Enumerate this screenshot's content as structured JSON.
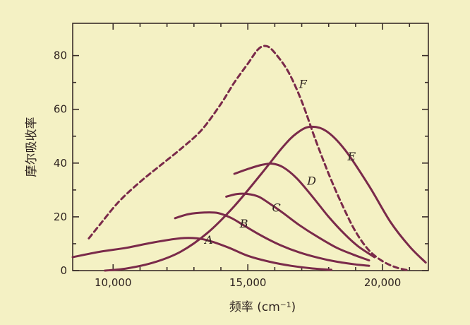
{
  "chart_data": {
    "type": "line",
    "title": "",
    "xlabel": "频率 (cm⁻¹)",
    "ylabel": "摩尔吸收率",
    "xlim": [
      8500,
      21700
    ],
    "ylim": [
      0,
      92
    ],
    "x_ticks": [
      10000,
      15000,
      20000
    ],
    "x_tick_labels": [
      "10,000",
      "15,000",
      "20,000"
    ],
    "x_minor_ticks": [
      11000,
      12000,
      13000,
      14000,
      16000,
      17000,
      18000,
      19000,
      21000
    ],
    "y_ticks": [
      0,
      20,
      40,
      60,
      80
    ],
    "y_tick_labels": [
      "0",
      "20",
      "40",
      "60",
      "80"
    ],
    "y_minor_ticks": [
      10,
      30,
      50,
      70
    ],
    "grid": false,
    "legend": "none",
    "colors": {
      "line": "#7a2a4a",
      "axis": "#3a2e2a",
      "background": "#f4f1c4"
    },
    "series": [
      {
        "name": "A",
        "style": "solid",
        "label_at": [
          13400,
          10
        ],
        "x": [
          8500,
          9500,
          10500,
          11500,
          12500,
          13100,
          13600,
          14300,
          15000,
          15800,
          16600,
          17400,
          18100
        ],
        "y": [
          5,
          7,
          8.5,
          10.5,
          12,
          12,
          11,
          8.5,
          5.5,
          3.3,
          1.8,
          0.8,
          0.3
        ]
      },
      {
        "name": "B",
        "style": "solid",
        "label_at": [
          14700,
          16
        ],
        "x": [
          12300,
          12800,
          13400,
          13900,
          14400,
          14900,
          15500,
          16200,
          16900,
          17600,
          18300,
          19000,
          19500
        ],
        "y": [
          19.5,
          21,
          21.6,
          21.4,
          19.5,
          16.5,
          13,
          9.5,
          6.8,
          4.8,
          3.3,
          2.3,
          1.8
        ]
      },
      {
        "name": "C",
        "style": "solid",
        "label_at": [
          15900,
          22
        ],
        "x": [
          14200,
          14600,
          15000,
          15400,
          15800,
          16300,
          16900,
          17600,
          18300,
          18900,
          19500
        ],
        "y": [
          27.5,
          28.5,
          28.5,
          27.5,
          25,
          21.5,
          17,
          12.5,
          8.5,
          6,
          3.8
        ]
      },
      {
        "name": "D",
        "style": "solid",
        "label_at": [
          17200,
          32
        ],
        "x": [
          14500,
          15000,
          15500,
          15900,
          16300,
          16800,
          17400,
          18000,
          18600,
          19100,
          19700
        ],
        "y": [
          36,
          37.8,
          39.3,
          39.8,
          38.5,
          34.5,
          27.5,
          20,
          13.5,
          9,
          5
        ]
      },
      {
        "name": "E",
        "style": "solid",
        "label_at": [
          18700,
          41
        ],
        "x": [
          9700,
          10500,
          11500,
          12500,
          13500,
          14500,
          15500,
          16300,
          16800,
          17300,
          17900,
          18600,
          19500,
          20300,
          21000,
          21600
        ],
        "y": [
          0,
          0.8,
          3,
          7,
          14,
          24,
          36,
          46,
          51,
          53.5,
          52,
          45,
          31.5,
          18,
          9,
          3
        ]
      },
      {
        "name": "F",
        "style": "dashed",
        "label_at": [
          16900,
          68
        ],
        "x": [
          9100,
          9500,
          10200,
          11000,
          11800,
          12600,
          13300,
          14000,
          14500,
          15000,
          15400,
          15700,
          16000,
          16500,
          17000,
          17500,
          18000,
          18500,
          19000,
          19500,
          20000,
          20500,
          21000
        ],
        "y": [
          12,
          17,
          25.5,
          33,
          39.5,
          46,
          52.5,
          62,
          70,
          77,
          82.5,
          83.5,
          81,
          74,
          63,
          49,
          36,
          24.5,
          14.5,
          7.5,
          3.5,
          1.2,
          0
        ]
      }
    ]
  }
}
